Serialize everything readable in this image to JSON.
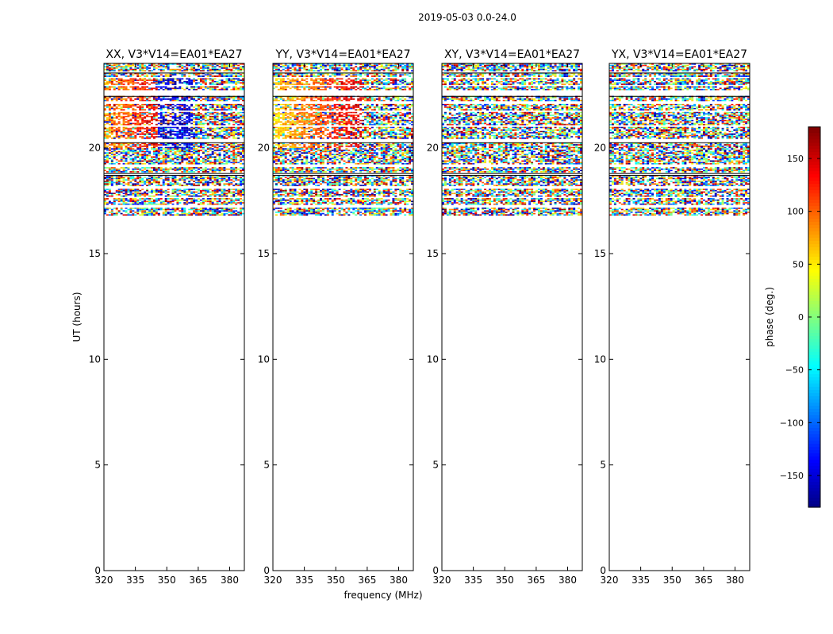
{
  "figure": {
    "suptitle": "2019-05-03 0.0-24.0",
    "xlabel": "frequency (MHz)",
    "ylabel": "UT (hours)"
  },
  "chart_data": [
    {
      "type": "heatmap",
      "title": "XX, V3*V14=EA01*EA27",
      "xlim": [
        320,
        387
      ],
      "ylim": [
        0,
        24
      ],
      "xticks": [
        320,
        335,
        350,
        365,
        380
      ],
      "yticks": [
        0,
        5,
        10,
        15,
        20
      ],
      "data_start_hour": 16.8,
      "structure": "coherent phase: ~40-150 deg (orange/red) at 320-360 MHz, ~-150 deg (blue) at 345-362 MHz, noise above 362 MHz"
    },
    {
      "type": "heatmap",
      "title": "YY, V3*V14=EA01*EA27",
      "xlim": [
        320,
        387
      ],
      "ylim": [
        0,
        24
      ],
      "xticks": [
        320,
        335,
        350,
        365,
        380
      ],
      "yticks": [
        0,
        5,
        10,
        15,
        20
      ],
      "data_start_hour": 16.8,
      "structure": "coherent phase: ~50-80 deg (yellow) at 320-340 MHz rising to ~150 deg (red) near 360 MHz, noise above 362 MHz"
    },
    {
      "type": "heatmap",
      "title": "XY, V3*V14=EA01*EA27",
      "xlim": [
        320,
        387
      ],
      "ylim": [
        0,
        24
      ],
      "xticks": [
        320,
        335,
        350,
        365,
        380
      ],
      "yticks": [
        0,
        5,
        10,
        15,
        20
      ],
      "data_start_hour": 16.8,
      "structure": "random phase noise across full band"
    },
    {
      "type": "heatmap",
      "title": "YX, V3*V14=EA01*EA27",
      "xlim": [
        320,
        387
      ],
      "ylim": [
        0,
        24
      ],
      "xticks": [
        320,
        335,
        350,
        365,
        380
      ],
      "yticks": [
        0,
        5,
        10,
        15,
        20
      ],
      "data_start_hour": 16.8,
      "structure": "random phase noise across full band"
    }
  ],
  "colorbar": {
    "label": "phase (deg.)",
    "range": [
      -180,
      180
    ],
    "ticks": [
      -150,
      -100,
      -50,
      0,
      50,
      100,
      150
    ],
    "ticklabels": [
      "−150",
      "−100",
      "−50",
      "0",
      "50",
      "100",
      "150"
    ],
    "colormap": "jet"
  },
  "blank_row_bands": [
    [
      23.55,
      23.6
    ],
    [
      23.3,
      23.35
    ],
    [
      22.9,
      23.0
    ],
    [
      22.5,
      22.7
    ],
    [
      22.1,
      22.2
    ],
    [
      21.7,
      21.75
    ],
    [
      21.0,
      21.05
    ],
    [
      20.25,
      20.45
    ],
    [
      19.7,
      19.75
    ],
    [
      19.1,
      19.2
    ],
    [
      18.7,
      18.85
    ],
    [
      18.1,
      18.2
    ],
    [
      17.6,
      17.7
    ],
    [
      17.2,
      17.3
    ]
  ]
}
